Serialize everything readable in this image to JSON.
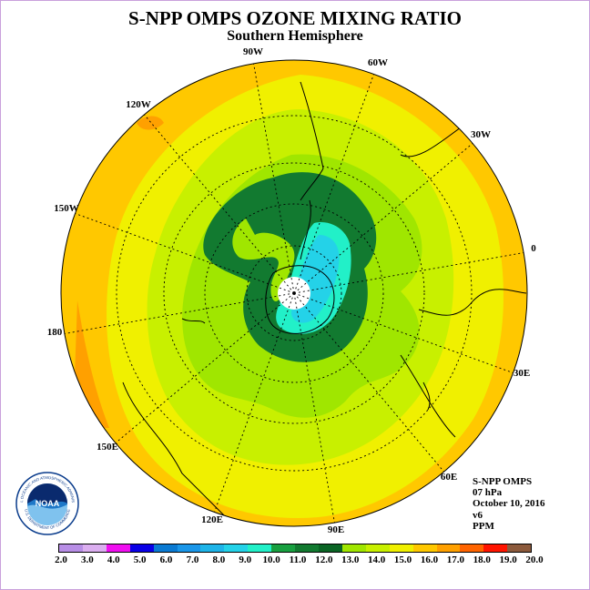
{
  "title": "S-NPP OMPS OZONE MIXING RATIO",
  "subtitle": "Southern Hemisphere",
  "longitude_labels": [
    "90W",
    "60W",
    "120W",
    "30W",
    "150W",
    "0",
    "180",
    "30E",
    "150E",
    "60E",
    "120E",
    "90E"
  ],
  "info": {
    "instrument": "S-NPP OMPS",
    "level": "07 hPa",
    "date": "October 10, 2016",
    "version": "v6",
    "units": "PPM"
  },
  "logo": {
    "text": "NOAA",
    "ring_text": "NATIONAL OCEANIC AND ATMOSPHERIC ADMINISTRATION",
    "ring_text_bottom": "U.S. DEPARTMENT OF COMMERCE"
  },
  "colorbar": {
    "ticks": [
      "2.0",
      "3.0",
      "4.0",
      "5.0",
      "6.0",
      "7.0",
      "8.0",
      "9.0",
      "10.0",
      "11.0",
      "12.0",
      "13.0",
      "14.0",
      "15.0",
      "16.0",
      "17.0",
      "18.0",
      "19.0",
      "20.0"
    ],
    "colors": [
      "#b88ee6",
      "#dbaef0",
      "#f00ff0",
      "#0a00e6",
      "#0a7ad2",
      "#1a96e8",
      "#1eb4e8",
      "#24d2e8",
      "#22f0c8",
      "#18a040",
      "#127a30",
      "#0a6424",
      "#a0e600",
      "#c8f000",
      "#f0f000",
      "#ffc800",
      "#ffa000",
      "#ff6400",
      "#ff1400",
      "#8c5a3c"
    ]
  }
}
